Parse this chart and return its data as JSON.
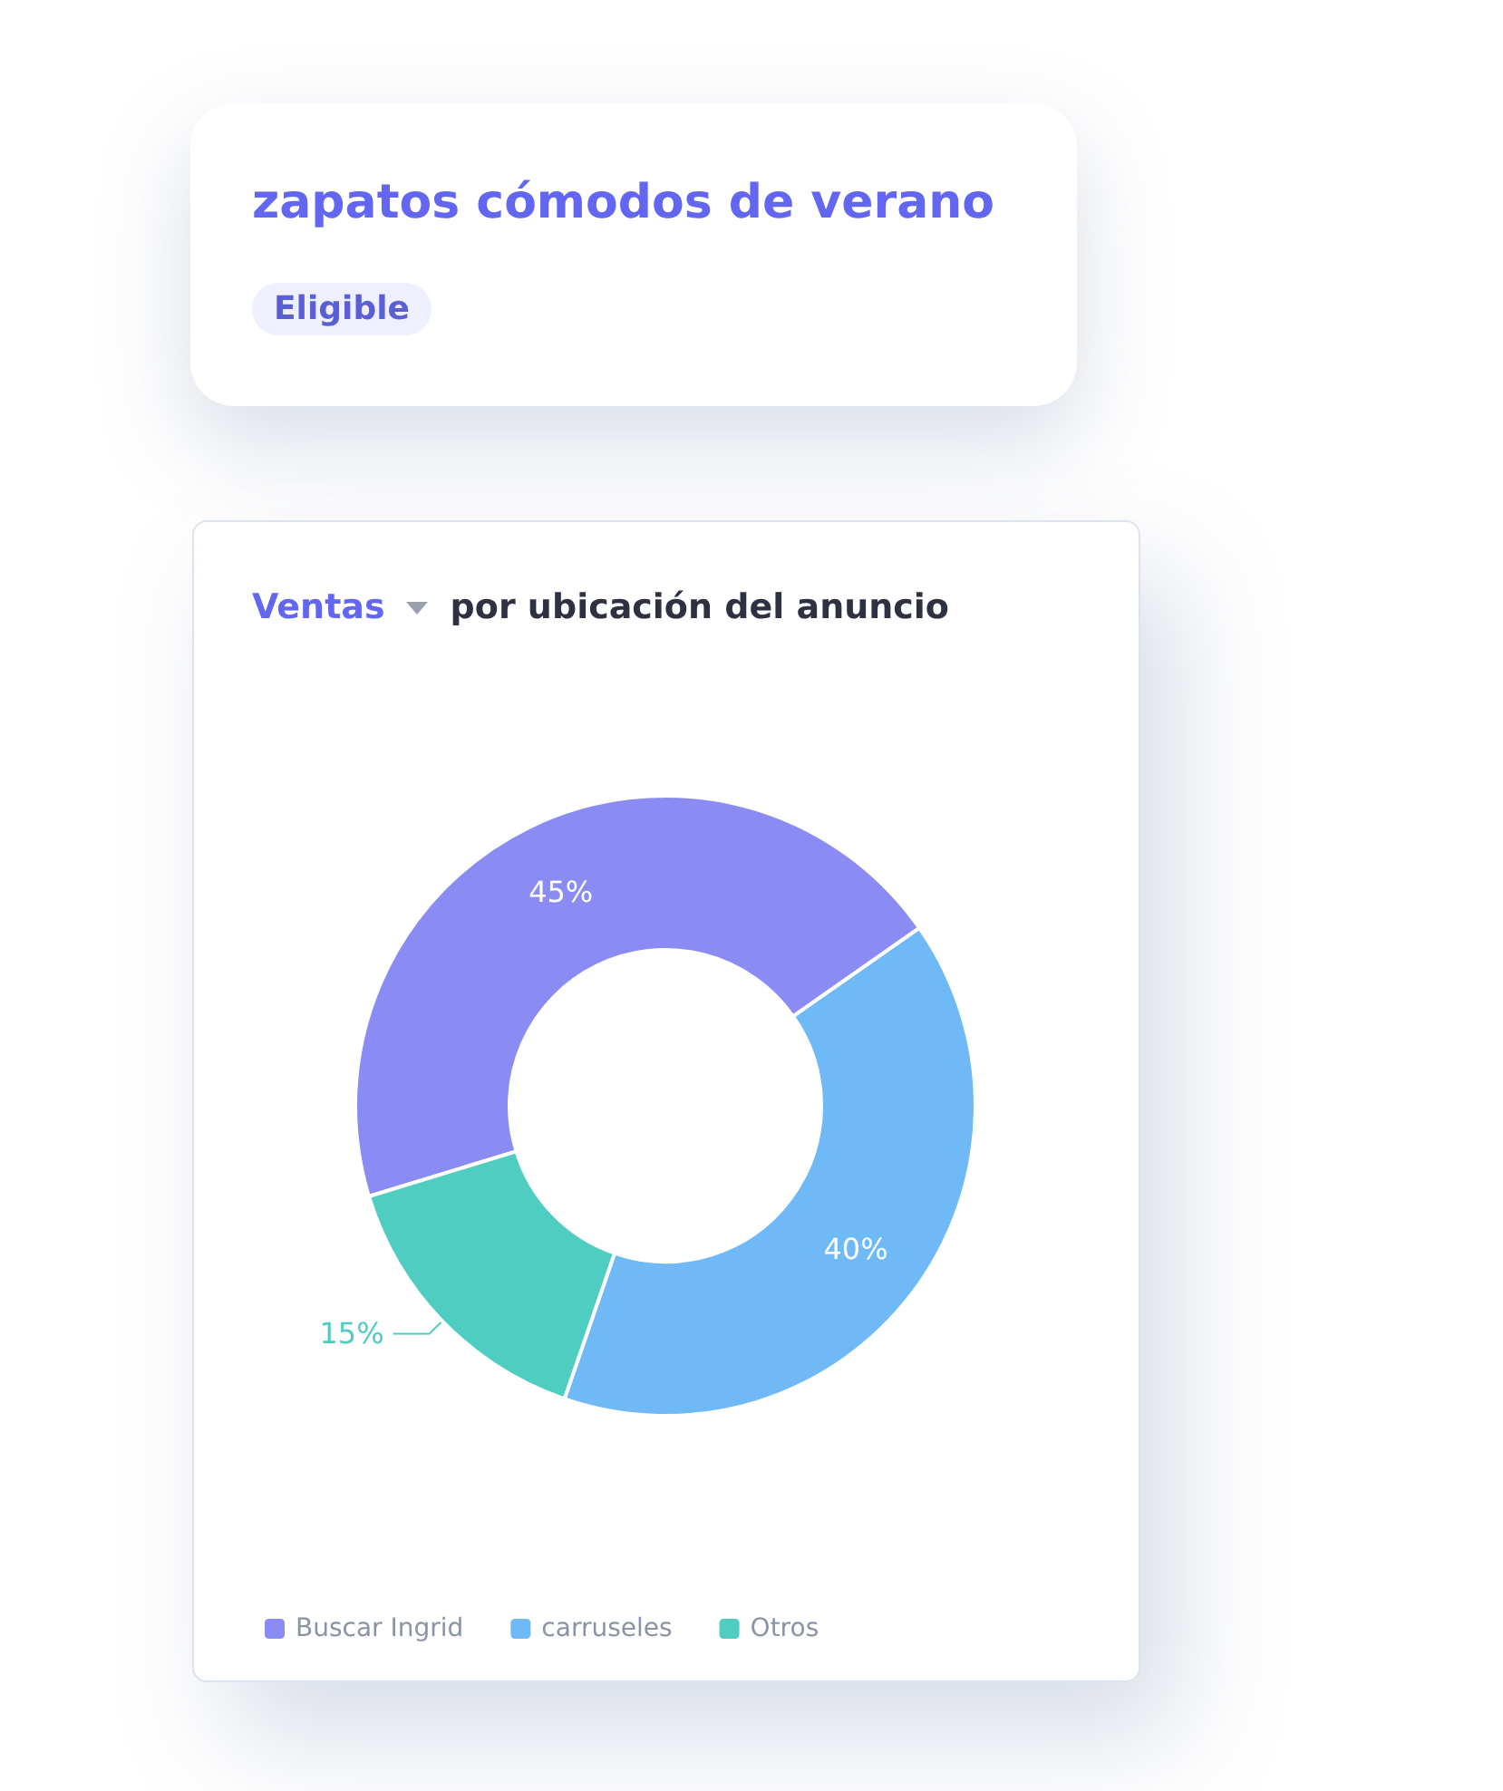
{
  "chart_data": {
    "type": "donut",
    "title": "Ventas",
    "subtitle": "por ubicación del anuncio",
    "annotations": [
      "zapatos cómodos de verano",
      "Eligible"
    ],
    "categories": [
      "Buscar Ingrid",
      "carruseles",
      "Otros"
    ],
    "values": [
      45,
      40,
      15
    ],
    "colors": [
      "#8b8cf3",
      "#6fb9f6",
      "#4ecdc0"
    ],
    "value_labels": [
      "45%",
      "40%",
      "15%"
    ],
    "legend": "bottom left"
  }
}
